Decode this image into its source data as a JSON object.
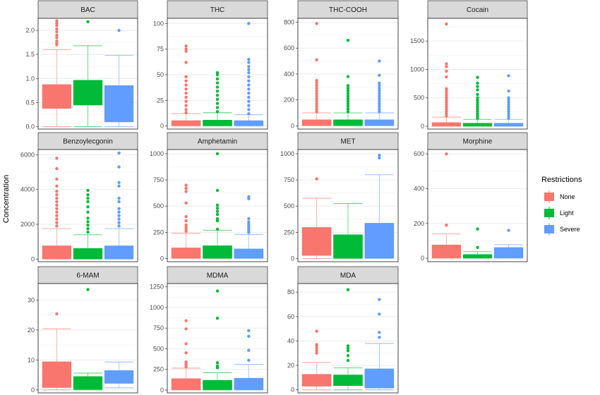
{
  "chart_data": {
    "type": "boxplot",
    "ylabel": "Concentration",
    "xlabel": "",
    "legend": {
      "title": "Restrictions",
      "position": "right",
      "entries": [
        {
          "name": "None",
          "color": "#F8766D"
        },
        {
          "name": "Light",
          "color": "#00BA38"
        },
        {
          "name": "Severe",
          "color": "#619CFF"
        }
      ]
    },
    "grid": true,
    "panels": [
      {
        "title": "BAC",
        "ylim": [
          -0.05,
          2.25
        ],
        "ticks": [
          0,
          0.5,
          1,
          1.5,
          2
        ],
        "tick_labels": [
          "0.0",
          "0.5",
          "1.0",
          "1.5",
          "2.0"
        ],
        "boxes": [
          {
            "group": "None",
            "min": 0,
            "q1": 0.38,
            "median": 0.87,
            "q3": 0.87,
            "max": 1.6,
            "outliers": [
              1.7,
              1.73,
              1.78,
              1.85,
              1.9,
              1.97,
              2.03,
              2.1,
              2.15,
              2.2
            ]
          },
          {
            "group": "Light",
            "min": 0,
            "q1": 0.45,
            "median": 0.96,
            "q3": 0.96,
            "max": 1.68,
            "outliers": [
              2.18
            ]
          },
          {
            "group": "Severe",
            "min": 0,
            "q1": 0.1,
            "median": 0.85,
            "q3": 0.85,
            "max": 1.48,
            "outliers": [
              2.0
            ]
          }
        ]
      },
      {
        "title": "THC",
        "ylim": [
          -3,
          105
        ],
        "ticks": [
          0,
          25,
          50,
          75,
          100
        ],
        "tick_labels": [
          "0",
          "25",
          "50",
          "75",
          "100"
        ],
        "boxes": [
          {
            "group": "None",
            "min": 0,
            "q1": 0.5,
            "median": 5,
            "q3": 5,
            "max": 12,
            "outliers": [
              13,
              16,
              20,
              24,
              28,
              32,
              36,
              40,
              44,
              48,
              62,
              73,
              75,
              78
            ]
          },
          {
            "group": "Light",
            "min": 0,
            "q1": 0.5,
            "median": 5.5,
            "q3": 5.5,
            "max": 13,
            "outliers": [
              14,
              18,
              22,
              26,
              30,
              34,
              38,
              42,
              46,
              50,
              52
            ]
          },
          {
            "group": "Severe",
            "min": 0,
            "q1": 0.5,
            "median": 5,
            "q3": 5,
            "max": 11,
            "outliers": [
              12,
              16,
              20,
              24,
              28,
              32,
              36,
              40,
              44,
              48,
              52,
              55,
              58,
              62,
              65,
              100
            ]
          }
        ]
      },
      {
        "title": "THC-COOH",
        "ylim": [
          -25,
          830
        ],
        "ticks": [
          0,
          200,
          400,
          600,
          800
        ],
        "tick_labels": [
          "0",
          "200",
          "400",
          "600",
          "800"
        ],
        "boxes": [
          {
            "group": "None",
            "min": 0,
            "q1": 5,
            "median": 45,
            "q3": 45,
            "max": 100,
            "outliers": [
              110,
              130,
              150,
              170,
              190,
              210,
              230,
              250,
              270,
              290,
              310,
              330,
              350,
              510,
              790
            ]
          },
          {
            "group": "Light",
            "min": 0,
            "q1": 5,
            "median": 45,
            "q3": 45,
            "max": 100,
            "outliers": [
              110,
              130,
              150,
              170,
              190,
              210,
              230,
              250,
              270,
              290,
              310,
              380,
              660
            ]
          },
          {
            "group": "Severe",
            "min": 0,
            "q1": 5,
            "median": 45,
            "q3": 45,
            "max": 100,
            "outliers": [
              110,
              130,
              150,
              170,
              190,
              210,
              230,
              250,
              270,
              290,
              310,
              330,
              390,
              500
            ]
          }
        ]
      },
      {
        "title": "Cocain",
        "ylim": [
          -50,
          1900
        ],
        "ticks": [
          0,
          500,
          1000,
          1500
        ],
        "tick_labels": [
          "0",
          "500",
          "1000",
          "1500"
        ],
        "boxes": [
          {
            "group": "None",
            "min": 0,
            "q1": 5,
            "median": 60,
            "q3": 60,
            "max": 160,
            "outliers": [
              180,
              220,
              260,
              300,
              340,
              380,
              420,
              460,
              500,
              540,
              580,
              620,
              660,
              870,
              970,
              1050,
              1100,
              1800
            ]
          },
          {
            "group": "Light",
            "min": 0,
            "q1": 5,
            "median": 50,
            "q3": 50,
            "max": 120,
            "outliers": [
              140,
              180,
              220,
              260,
              300,
              340,
              380,
              420,
              460,
              500,
              560,
              640,
              700,
              760,
              860
            ]
          },
          {
            "group": "Severe",
            "min": 0,
            "q1": 5,
            "median": 50,
            "q3": 50,
            "max": 120,
            "outliers": [
              140,
              180,
              220,
              260,
              300,
              340,
              380,
              420,
              460,
              500,
              620,
              890
            ]
          }
        ]
      },
      {
        "title": "Benzoylecgonin",
        "ylim": [
          -150,
          6300
        ],
        "ticks": [
          0,
          2000,
          4000,
          6000
        ],
        "tick_labels": [
          "0",
          "2000",
          "4000",
          "6000"
        ],
        "boxes": [
          {
            "group": "None",
            "min": 0,
            "q1": 20,
            "median": 750,
            "q3": 750,
            "max": 1750,
            "outliers": [
              1900,
              2100,
              2300,
              2500,
              2700,
              2900,
              3100,
              3300,
              3500,
              3700,
              3900,
              4200,
              4600,
              5200,
              5800
            ]
          },
          {
            "group": "Light",
            "min": 0,
            "q1": 20,
            "median": 600,
            "q3": 600,
            "max": 1400,
            "outliers": [
              1550,
              1750,
              1950,
              2150,
              2350,
              2700,
              3000,
              3300,
              3500,
              3700,
              3950
            ]
          },
          {
            "group": "Severe",
            "min": 0,
            "q1": 20,
            "median": 750,
            "q3": 750,
            "max": 1750,
            "outliers": [
              1900,
              2100,
              2300,
              2500,
              2700,
              2900,
              3300,
              3500,
              4200,
              4400,
              5300,
              6100
            ]
          }
        ]
      },
      {
        "title": "Amphetamin",
        "ylim": [
          -30,
          1040
        ],
        "ticks": [
          0,
          250,
          500,
          750,
          1000
        ],
        "tick_labels": [
          "0",
          "250",
          "500",
          "750",
          "1000"
        ],
        "boxes": [
          {
            "group": "None",
            "min": 0,
            "q1": 5,
            "median": 100,
            "q3": 100,
            "max": 240,
            "outliers": [
              260,
              280,
              300,
              320,
              360,
              400,
              530,
              640,
              670,
              700
            ]
          },
          {
            "group": "Light",
            "min": 0,
            "q1": 5,
            "median": 120,
            "q3": 120,
            "max": 270,
            "outliers": [
              280,
              360,
              380,
              420,
              450,
              480,
              510,
              650,
              1000
            ]
          },
          {
            "group": "Severe",
            "min": 0,
            "q1": 5,
            "median": 90,
            "q3": 90,
            "max": 230,
            "outliers": [
              250,
              270,
              290,
              310,
              330,
              350,
              380,
              570,
              590
            ]
          }
        ]
      },
      {
        "title": "MET",
        "ylim": [
          -30,
          1040
        ],
        "ticks": [
          0,
          250,
          500,
          750,
          1000
        ],
        "tick_labels": [
          "0",
          "250",
          "500",
          "750",
          "1000"
        ],
        "boxes": [
          {
            "group": "None",
            "min": 0,
            "q1": 30,
            "median": 295,
            "q3": 295,
            "max": 575,
            "outliers": [
              760
            ]
          },
          {
            "group": "Light",
            "min": 0,
            "q1": 5,
            "median": 225,
            "q3": 225,
            "max": 525,
            "outliers": []
          },
          {
            "group": "Severe",
            "min": 0,
            "q1": 5,
            "median": 335,
            "q3": 335,
            "max": 800,
            "outliers": [
              960,
              985
            ]
          }
        ]
      },
      {
        "title": "Morphine",
        "ylim": [
          -20,
          625
        ],
        "ticks": [
          0,
          200,
          400,
          600
        ],
        "tick_labels": [
          "0",
          "200",
          "400",
          "600"
        ],
        "boxes": [
          {
            "group": "None",
            "min": 0,
            "q1": 2,
            "median": 75,
            "q3": 75,
            "max": 140,
            "outliers": [
              190,
              600
            ]
          },
          {
            "group": "Light",
            "min": 0,
            "q1": 2,
            "median": 20,
            "q3": 20,
            "max": 38,
            "outliers": [
              62,
              168
            ]
          },
          {
            "group": "Severe",
            "min": 0,
            "q1": 2,
            "median": 60,
            "q3": 60,
            "max": 78,
            "outliers": [
              160
            ]
          }
        ]
      },
      {
        "title": "6-MAM",
        "ylim": [
          -1,
          35.5
        ],
        "ticks": [
          0,
          10,
          20,
          30
        ],
        "tick_labels": [
          "0",
          "10",
          "20",
          "30"
        ],
        "boxes": [
          {
            "group": "None",
            "min": 0,
            "q1": 0.8,
            "median": 9.3,
            "q3": 9.3,
            "max": 20.4,
            "outliers": [
              25.4
            ]
          },
          {
            "group": "Light",
            "min": 0,
            "q1": 0.2,
            "median": 4.4,
            "q3": 4.4,
            "max": 5.6,
            "outliers": [
              33.5
            ]
          },
          {
            "group": "Severe",
            "min": 0.7,
            "q1": 2.2,
            "median": 6.4,
            "q3": 6.4,
            "max": 9.3,
            "outliers": []
          }
        ]
      },
      {
        "title": "MDMA",
        "ylim": [
          -35,
          1290
        ],
        "ticks": [
          0,
          250,
          500,
          750,
          1000,
          1250
        ],
        "tick_labels": [
          "0",
          "250",
          "500",
          "750",
          "1000",
          "1250"
        ],
        "boxes": [
          {
            "group": "None",
            "min": 0,
            "q1": 5,
            "median": 135,
            "q3": 135,
            "max": 265,
            "outliers": [
              280,
              300,
              320,
              340,
              450,
              560,
              740,
              840
            ]
          },
          {
            "group": "Light",
            "min": 0,
            "q1": 5,
            "median": 115,
            "q3": 115,
            "max": 210,
            "outliers": [
              270,
              290,
              330,
              870,
              1200
            ]
          },
          {
            "group": "Severe",
            "min": 0,
            "q1": 5,
            "median": 140,
            "q3": 140,
            "max": 310,
            "outliers": [
              360,
              480,
              650,
              720
            ]
          }
        ]
      },
      {
        "title": "MDA",
        "ylim": [
          -2.5,
          87
        ],
        "ticks": [
          0,
          20,
          40,
          60,
          80
        ],
        "tick_labels": [
          "0",
          "20",
          "40",
          "60",
          "80"
        ],
        "boxes": [
          {
            "group": "None",
            "min": 0,
            "q1": 3,
            "median": 12.5,
            "q3": 12.5,
            "max": 22.5,
            "outliers": [
              30,
              32,
              34,
              36,
              37,
              48
            ]
          },
          {
            "group": "Light",
            "min": 0,
            "q1": 3.5,
            "median": 12,
            "q3": 12,
            "max": 18,
            "outliers": [
              24,
              28,
              32,
              34,
              36,
              82
            ]
          },
          {
            "group": "Severe",
            "min": 0,
            "q1": 1.5,
            "median": 17,
            "q3": 17,
            "max": 38,
            "outliers": [
              43,
              47,
              62,
              74
            ]
          }
        ]
      }
    ]
  }
}
